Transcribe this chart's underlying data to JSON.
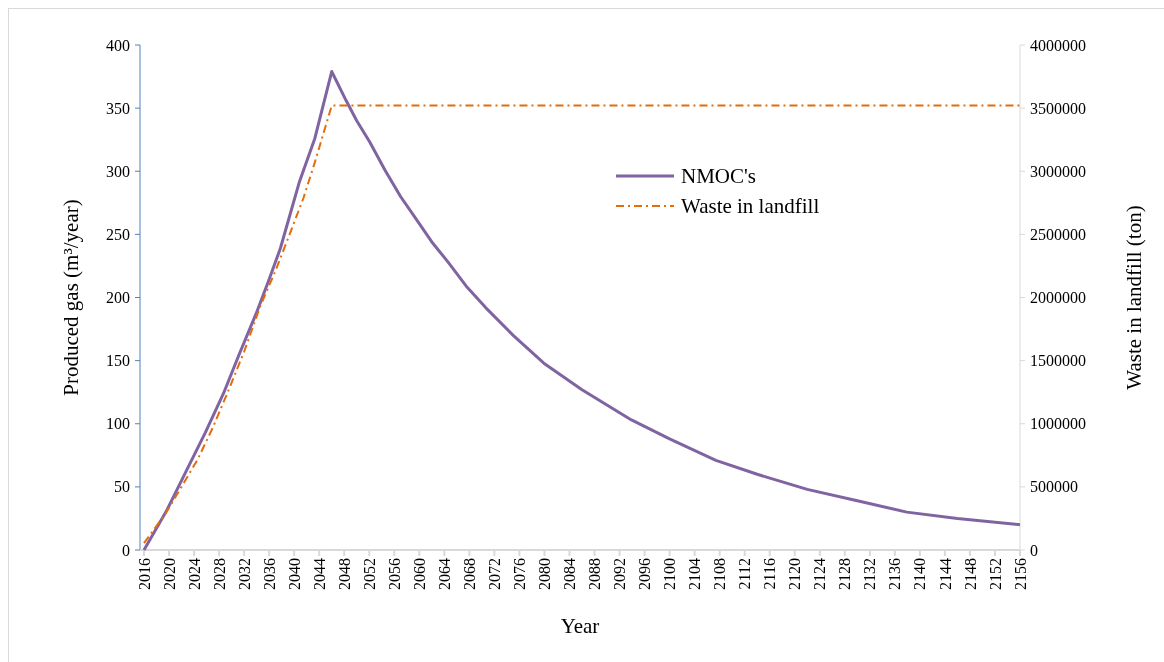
{
  "chart_data": {
    "type": "line",
    "xlabel": "Year",
    "ylabel": "Produced gas (m³/year)",
    "y2label": "Waste in landfill (ton)",
    "xlim": [
      2016,
      2156
    ],
    "xticks": [
      2016,
      2020,
      2024,
      2028,
      2032,
      2036,
      2040,
      2044,
      2048,
      2052,
      2056,
      2060,
      2064,
      2068,
      2072,
      2076,
      2080,
      2084,
      2088,
      2092,
      2096,
      2100,
      2104,
      2108,
      2112,
      2116,
      2120,
      2124,
      2128,
      2132,
      2136,
      2140,
      2144,
      2148,
      2152,
      2156
    ],
    "ylim": [
      0,
      400
    ],
    "yticks": [
      0,
      50,
      100,
      150,
      200,
      250,
      300,
      350,
      400
    ],
    "y2lim": [
      0,
      4000000
    ],
    "y2ticks": [
      0,
      500000,
      1000000,
      1500000,
      2000000,
      2500000,
      3000000,
      3500000,
      4000000
    ],
    "legend": "top right",
    "grid": false,
    "series": [
      {
        "name": "NMOC's",
        "color": "#8064a2",
        "line_style": "solid",
        "x": [
          2016,
          2019.6,
          2022.9,
          2025.8,
          2028.7,
          2031.3,
          2033.9,
          2035.9,
          2037.8,
          2040.8,
          2043.3,
          2046,
          2048.3,
          2050,
          2052.1,
          2054.5,
          2057,
          2059.5,
          2062,
          2064.6,
          2067.5,
          2070.6,
          2075,
          2079.9,
          2086,
          2093.9,
          2100,
          2107.4,
          2114,
          2122,
          2130,
          2137.9,
          2146,
          2156
        ],
        "values": [
          0,
          31,
          64,
          93,
          124,
          156,
          187,
          213,
          239,
          291,
          326,
          379,
          356,
          340,
          323,
          301,
          280,
          262,
          244,
          228,
          209,
          192,
          170,
          148,
          127,
          103,
          88,
          71,
          60,
          48,
          39,
          30,
          25,
          20
        ]
      },
      {
        "name": "Waste in landfill",
        "color": "#e46c0a",
        "line_style": "dashdot",
        "axis": "y2",
        "x": [
          2016,
          2019.4,
          2022,
          2024.6,
          2027,
          2029.3,
          2032,
          2034.5,
          2037,
          2039.5,
          2041.5,
          2043.3,
          2046,
          2060,
          2080,
          2100,
          2120,
          2140,
          2156
        ],
        "values": [
          55000,
          285000,
          500000,
          720000,
          970000,
          1240000,
          1570000,
          1920000,
          2210000,
          2530000,
          2790000,
          3070000,
          3520000,
          3520000,
          3520000,
          3520000,
          3520000,
          3520000,
          3520000
        ]
      }
    ]
  }
}
